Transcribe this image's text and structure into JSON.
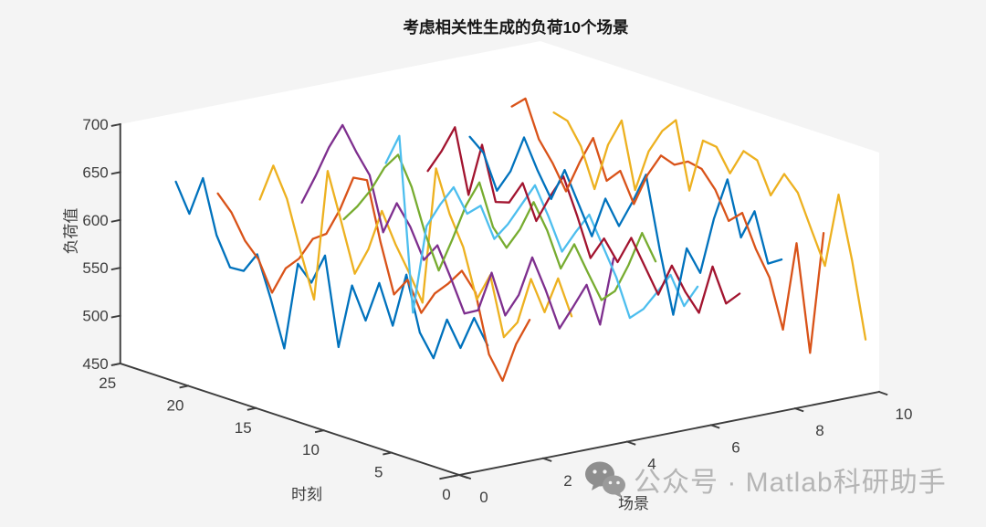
{
  "title": "考虑相关性生成的负荷10个场景",
  "watermark": {
    "text": "公众号 · Matlab科研助手"
  },
  "palette": {
    "axis_color": "#3d3d3d",
    "tick_label_color": "#3d3d3d",
    "plot_background": "#ffffff",
    "outer_background": "#f4f4f4",
    "watermark_color": "#b5b5b5"
  },
  "chart_data": {
    "type": "line",
    "projection": "matlab-3d",
    "title": "考虑相关性生成的负荷10个场景",
    "xlabel": "时刻",
    "ylabel": "场景",
    "zlabel": "负荷值",
    "xlim": [
      0,
      25
    ],
    "ylim": [
      0,
      10
    ],
    "zlim": [
      450,
      700
    ],
    "x_ticks": [
      0,
      5,
      10,
      15,
      20,
      25
    ],
    "y_ticks": [
      0,
      2,
      4,
      6,
      8,
      10
    ],
    "z_ticks": [
      450,
      500,
      550,
      600,
      650,
      700
    ],
    "x": [
      1,
      2,
      3,
      4,
      5,
      6,
      7,
      8,
      9,
      10,
      11,
      12,
      13,
      14,
      15,
      16,
      17,
      18,
      19,
      20,
      21,
      22,
      23,
      24
    ],
    "series": [
      {
        "name": "场景1",
        "scenario": 1,
        "color": "#0072BD",
        "values": [
          572,
          596,
          560,
          585,
          540,
          562,
          618,
          560,
          600,
          556,
          588,
          519,
          610,
          577,
          592,
          499,
          546,
          588,
          566,
          565,
          594,
          649,
          607,
          636
        ]
      },
      {
        "name": "场景2",
        "scenario": 2,
        "color": "#D95319",
        "values": [
          590,
          560,
          517,
          540,
          600,
          618,
          600,
          585,
          560,
          590,
          570,
          620,
          680,
          678,
          640,
          610,
          600,
          575,
          560,
          530,
          560,
          575,
          600,
          615
        ]
      },
      {
        "name": "场景3",
        "scenario": 3,
        "color": "#EDB120",
        "values": [
          585,
          620,
          580,
          610,
          560,
          540,
          600,
          570,
          620,
          650,
          693,
          548,
          575,
          600,
          630,
          585,
          555,
          605,
          653,
          514,
          560,
          610,
          640,
          600
        ]
      },
      {
        "name": "场景4",
        "scenario": 4,
        "color": "#7E2F8E",
        "values": [
          637,
          563,
          600,
          572,
          545,
          580,
          610,
          566,
          540,
          580,
          536,
          528,
          560,
          590,
          570,
          600,
          620,
          585,
          640,
          660,
          683,
          655,
          620,
          588
        ]
      },
      {
        "name": "场景5",
        "scenario": 5,
        "color": "#77AC30",
        "values": [
          625,
          650,
          612,
          580,
          566,
          590,
          615,
          585,
          620,
          645,
          612,
          588,
          605,
          647,
          618,
          578,
          541,
          575,
          619,
          648,
          630,
          602,
          580,
          562
        ]
      },
      {
        "name": "场景6",
        "scenario": 6,
        "color": "#4DBEEE",
        "values": [
          590,
          565,
          593,
          570,
          548,
          534,
          572,
          600,
          628,
          605,
          580,
          612,
          640,
          615,
          590,
          570,
          600,
          587,
          610,
          587,
          560,
          465,
          645,
          612
        ]
      },
      {
        "name": "场景7",
        "scenario": 7,
        "color": "#A2142F",
        "values": [
          574,
          559,
          593,
          540,
          557,
          580,
          545,
          570,
          595,
          565,
          585,
          560,
          600,
          636,
          610,
          580,
          615,
          590,
          586,
          641,
          584,
          650,
          620,
          595
        ]
      },
      {
        "name": "场景8",
        "scenario": 8,
        "color": "#0072BD",
        "values": [
          601,
          592,
          642,
          610,
          666,
          620,
          559,
          580,
          506,
          570,
          643,
          610,
          580,
          604,
          560,
          590,
          620,
          585,
          610,
          640,
          600,
          575,
          610,
          622
        ]
      },
      {
        "name": "场景9",
        "scenario": 9,
        "color": "#D95319",
        "values": [
          620,
          490,
          600,
          505,
          555,
          580,
          613,
          600,
          628,
          645,
          648,
          640,
          645,
          620,
          585,
          615,
          600,
          640,
          610,
          575,
          600,
          620,
          658,
          645
        ]
      },
      {
        "name": "场景10",
        "scenario": 10,
        "color": "#EDB120",
        "values": [
          500,
          578,
          642,
          563,
          596,
          630,
          645,
          618,
          650,
          655,
          627,
          650,
          652,
          595,
          664,
          648,
          622,
          577,
          645,
          615,
          564,
          604,
          626,
          630
        ]
      }
    ]
  }
}
